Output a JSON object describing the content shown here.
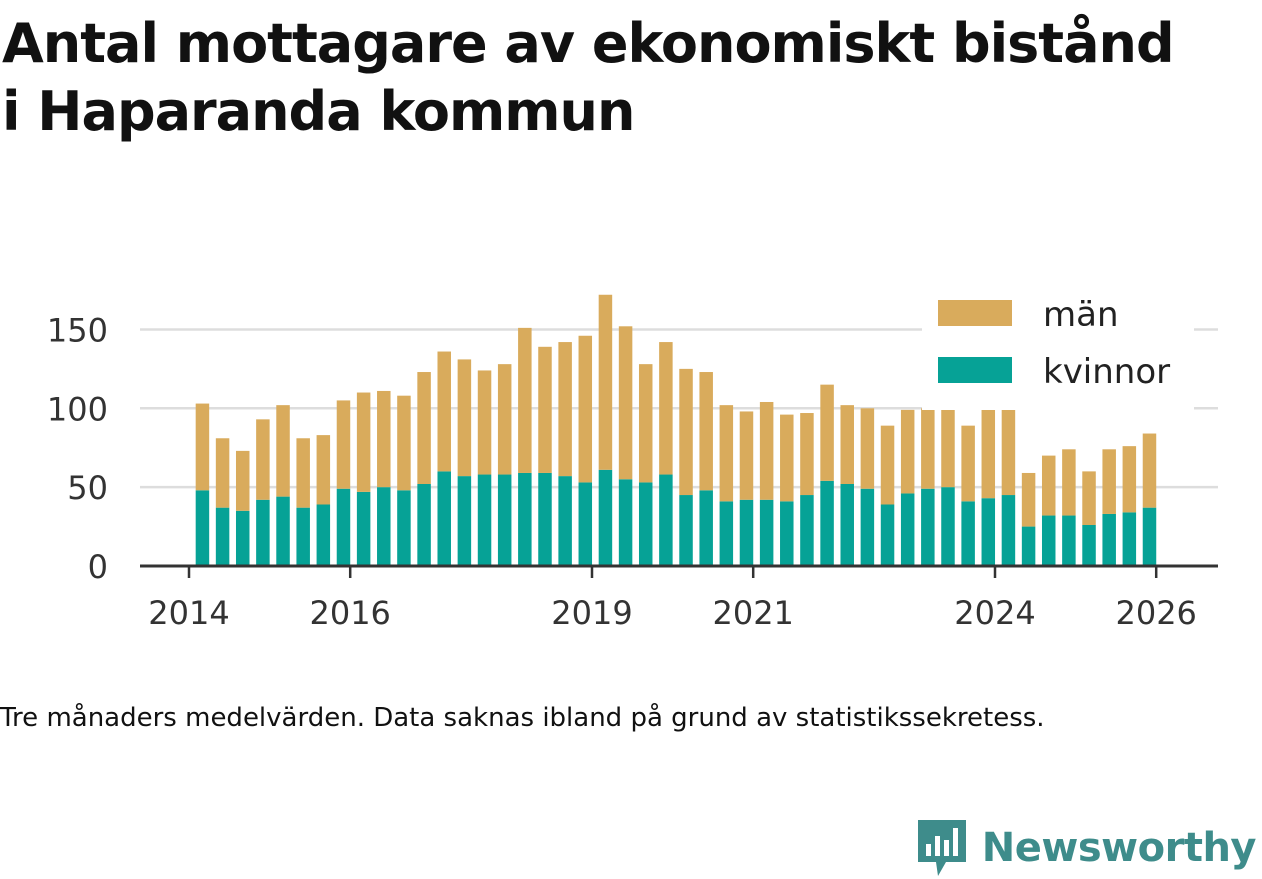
{
  "title_line1": "Antal mottagare av ekonomiskt bistånd",
  "title_line2": "i Haparanda kommun",
  "caption": "Tre månaders medelvärden. Data saknas ibland på grund av statistikssekretess.",
  "brand": "Newsworthy",
  "colors": {
    "man": "#d9ab5c",
    "kvinnor": "#06a296",
    "grid": "#dddddd",
    "axis": "#333333",
    "brand": "#3e8c8b"
  },
  "chart_data": {
    "type": "bar",
    "stacked": true,
    "title": "Antal mottagare av ekonomiskt bistånd i Haparanda kommun",
    "xlabel": "",
    "ylabel": "",
    "ylim": [
      0,
      175
    ],
    "yticks": [
      0,
      50,
      100,
      150
    ],
    "xticks": [
      "2014",
      "2016",
      "2019",
      "2021",
      "2024",
      "2026"
    ],
    "legend": [
      {
        "key": "man",
        "label": "män"
      },
      {
        "key": "kvinnor",
        "label": "kvinnor"
      }
    ],
    "categories": [
      "2014-03",
      "2014-06",
      "2014-09",
      "2014-12",
      "2015-03",
      "2015-06",
      "2015-09",
      "2015-12",
      "2016-03",
      "2016-06",
      "2016-09",
      "2016-12",
      "2017-03",
      "2017-06",
      "2017-09",
      "2017-12",
      "2018-03",
      "2018-06",
      "2018-09",
      "2018-12",
      "2019-03",
      "2019-06",
      "2019-09",
      "2019-12",
      "2020-03",
      "2020-06",
      "2020-09",
      "2020-12",
      "2021-03",
      "2021-06",
      "2021-09",
      "2021-12",
      "2022-03",
      "2022-06",
      "2022-09",
      "2022-12",
      "2023-03",
      "2023-06",
      "2023-09",
      "2023-12",
      "2024-03",
      "2024-06",
      "2024-09",
      "2024-12",
      "2025-03",
      "2025-06",
      "2025-09",
      "2025-12"
    ],
    "series": [
      {
        "name": "kvinnor",
        "values": [
          48,
          37,
          35,
          42,
          44,
          37,
          39,
          49,
          47,
          50,
          48,
          52,
          60,
          57,
          58,
          58,
          59,
          59,
          57,
          53,
          61,
          55,
          53,
          58,
          45,
          48,
          41,
          42,
          42,
          41,
          45,
          54,
          52,
          49,
          39,
          46,
          49,
          50,
          41,
          43,
          45,
          25,
          32,
          32,
          26,
          33,
          34,
          37
        ]
      },
      {
        "name": "män",
        "values": [
          55,
          44,
          38,
          51,
          58,
          44,
          44,
          56,
          63,
          61,
          60,
          71,
          76,
          74,
          66,
          70,
          92,
          80,
          85,
          93,
          111,
          97,
          75,
          84,
          80,
          75,
          61,
          56,
          62,
          55,
          52,
          61,
          50,
          51,
          50,
          53,
          51,
          50,
          48,
          57,
          60,
          34,
          38,
          42,
          34,
          41,
          42,
          47
        ]
      }
    ]
  }
}
